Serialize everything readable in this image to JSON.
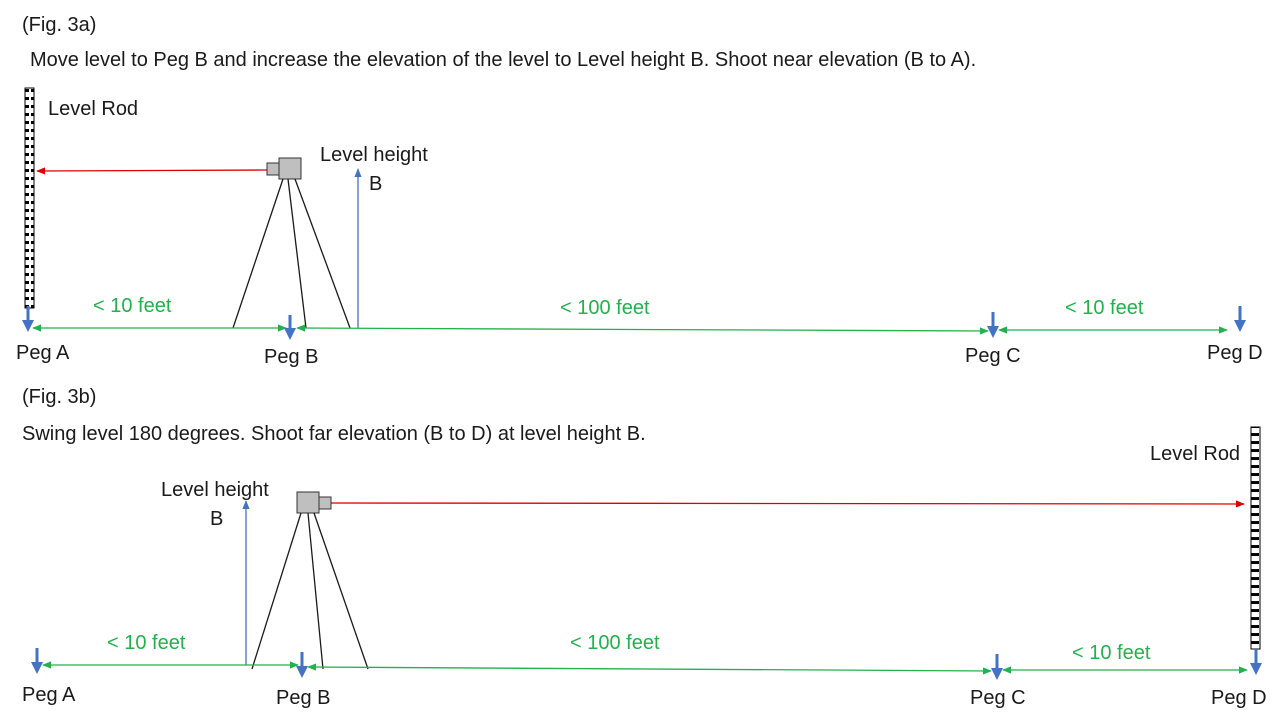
{
  "colors": {
    "green": "#22b14c",
    "blue": "#4472c4",
    "red": "#e00000",
    "tripod": "#1a1a1a",
    "level_body": "#bfbfbf"
  },
  "fig_a": {
    "label": "(Fig. 3a)",
    "caption": "Move level to Peg B and increase the elevation of the level to Level height B. Shoot near elevation (B to A).",
    "rod_label": "Level Rod",
    "height_label_line1": "Level height",
    "height_label_line2": "B",
    "dist_ab": "< 10 feet",
    "dist_bc": "< 100 feet",
    "dist_cd": "< 10 feet",
    "peg_a": "Peg A",
    "peg_b": "Peg B",
    "peg_c": "Peg C",
    "peg_d": "Peg D"
  },
  "fig_b": {
    "label": "(Fig. 3b)",
    "caption": "Swing level 180 degrees. Shoot far elevation (B to D) at level height B.",
    "rod_label": "Level Rod",
    "height_label_line1": "Level height",
    "height_label_line2": "B",
    "dist_ab": "< 10 feet",
    "dist_bc": "< 100 feet",
    "dist_cd": "< 10 feet",
    "peg_a": "Peg A",
    "peg_b": "Peg B",
    "peg_c": "Peg C",
    "peg_d": "Peg D"
  }
}
